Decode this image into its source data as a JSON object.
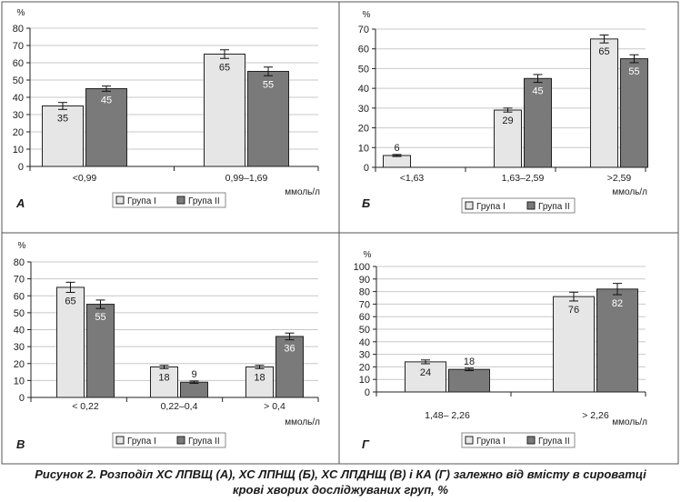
{
  "figure": {
    "caption_line1": "Рисунок 2. Розподіл ХС ЛПВЩ (А), ХС ЛПНЩ (Б), ХС ЛПДНЩ (В) і КА (Г) залежно від вмісту в сироватці",
    "caption_line2": "крові хворих досліджуваних груп, %"
  },
  "colors": {
    "group1": "#e6e6e6",
    "group2": "#7a7a7a",
    "stroke": "#222222",
    "grid": "#c8c8c8"
  },
  "chart_data": [
    {
      "type": "bar",
      "panel_label": "А",
      "ylabel": "%",
      "xunit": "ммоль/л",
      "ylim": [
        0,
        80
      ],
      "ytick_step": 10,
      "grid": true,
      "legend_position": "bottom",
      "categories": [
        "<0,99",
        "0,99–1,69"
      ],
      "series": [
        {
          "name": "Група І",
          "values": [
            35,
            65
          ],
          "err": [
            2.0,
            2.5
          ]
        },
        {
          "name": "Група ІІ",
          "values": [
            45,
            55
          ],
          "err": [
            1.5,
            2.5
          ]
        }
      ]
    },
    {
      "type": "bar",
      "panel_label": "Б",
      "ylabel": "%",
      "xunit": "ммоль/л",
      "ylim": [
        0,
        70
      ],
      "ytick_step": 10,
      "grid": true,
      "legend_position": "bottom",
      "categories": [
        "<1,63",
        "1,63–2,59",
        ">2,59"
      ],
      "series": [
        {
          "name": "Група І",
          "values": [
            6,
            29,
            65
          ],
          "err": [
            0.5,
            1.0,
            2.0
          ]
        },
        {
          "name": "Група ІІ",
          "values": [
            null,
            45,
            55
          ],
          "err": [
            0,
            2.0,
            2.0
          ]
        }
      ]
    },
    {
      "type": "bar",
      "panel_label": "В",
      "ylabel": "%",
      "xunit": "ммоль/л",
      "ylim": [
        0,
        80
      ],
      "ytick_step": 10,
      "grid": true,
      "legend_position": "bottom",
      "categories": [
        "< 0,22",
        "0,22–0,4",
        "> 0,4"
      ],
      "series": [
        {
          "name": "Група І",
          "values": [
            65,
            18,
            18
          ],
          "err": [
            3.0,
            1.0,
            1.0
          ]
        },
        {
          "name": "Група ІІ",
          "values": [
            55,
            9,
            36
          ],
          "err": [
            2.5,
            0.7,
            2.0
          ]
        }
      ]
    },
    {
      "type": "bar",
      "panel_label": "Г",
      "ylabel": "%",
      "xunit": "ммоль/л",
      "ylim": [
        0,
        100
      ],
      "ytick_step": 10,
      "grid": true,
      "legend_position": "bottom",
      "categories": [
        "1,48– 2,26",
        "> 2,26"
      ],
      "series": [
        {
          "name": "Група І",
          "values": [
            24,
            76
          ],
          "err": [
            1.5,
            3.5
          ]
        },
        {
          "name": "Група ІІ",
          "values": [
            18,
            82
          ],
          "err": [
            1.0,
            4.5
          ]
        }
      ]
    }
  ]
}
